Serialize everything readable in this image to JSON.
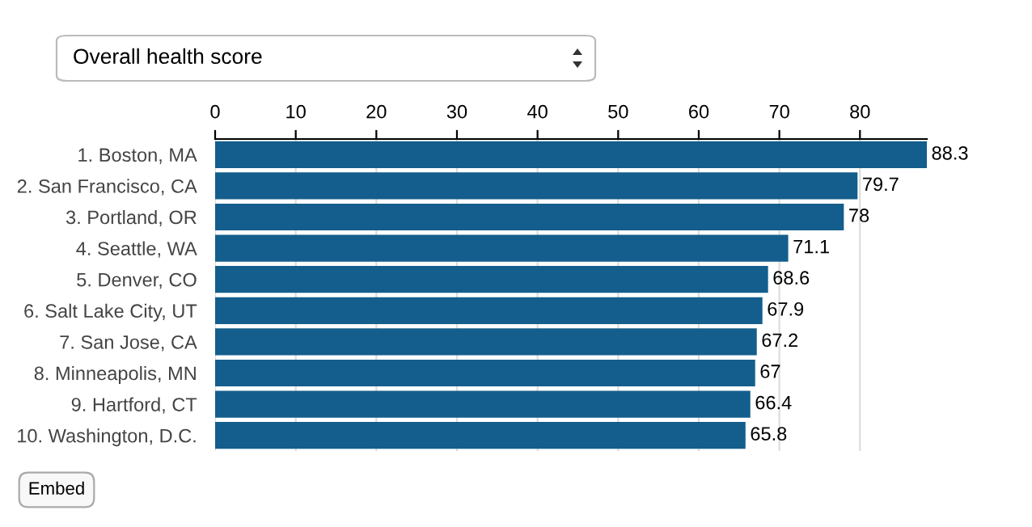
{
  "chart_data": {
    "type": "bar",
    "orientation": "horizontal",
    "title": "Overall health score",
    "categories": [
      "1. Boston, MA",
      "2. San Francisco, CA",
      "3. Portland, OR",
      "4. Seattle, WA",
      "5. Denver, CO",
      "6. Salt Lake City, UT",
      "7. San Jose, CA",
      "8. Minneapolis, MN",
      "9. Hartford, CT",
      "10. Washington, D.C."
    ],
    "values": [
      88.3,
      79.7,
      78,
      71.1,
      68.6,
      67.9,
      67.2,
      67,
      66.4,
      65.8
    ],
    "color": "#135e8c",
    "xlim": [
      0,
      88.3
    ],
    "xticks": [
      0,
      10,
      20,
      30,
      40,
      50,
      60,
      70,
      80
    ],
    "grid": "x",
    "data_labels": true,
    "annotations": [
      "Embed"
    ]
  }
}
